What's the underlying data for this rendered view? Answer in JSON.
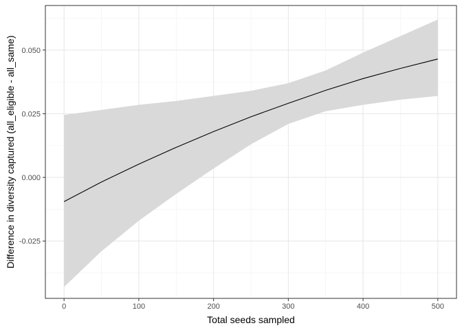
{
  "chart_data": {
    "type": "line",
    "title": "",
    "xlabel": "Total seeds sampled",
    "ylabel": "Difference in diversity captured (all_eligible - all_same)",
    "xlim": [
      -25,
      525
    ],
    "ylim": [
      -0.0475,
      0.0675
    ],
    "x_ticks": [
      0,
      100,
      200,
      300,
      400,
      500
    ],
    "x_tick_labels": [
      "0",
      "100",
      "200",
      "300",
      "400",
      "500"
    ],
    "y_ticks": [
      -0.025,
      0.0,
      0.025,
      0.05
    ],
    "y_tick_labels": [
      "-0.025",
      "0.000",
      "0.025",
      "0.050"
    ],
    "grid": true,
    "legend": "none",
    "series": [
      {
        "type": "line",
        "color": "#000000",
        "x": [
          0,
          50,
          100,
          150,
          200,
          250,
          300,
          350,
          400,
          450,
          500
        ],
        "y": [
          -0.0095,
          -0.0018,
          0.0052,
          0.0118,
          0.018,
          0.0238,
          0.0291,
          0.0342,
          0.0388,
          0.0428,
          0.0465
        ]
      },
      {
        "type": "ribbon",
        "color": "#d9d9d9",
        "x": [
          0,
          50,
          100,
          150,
          200,
          250,
          300,
          350,
          400,
          450,
          500
        ],
        "lower": [
          -0.043,
          -0.029,
          -0.017,
          -0.0065,
          0.0035,
          0.013,
          0.021,
          0.026,
          0.0285,
          0.0305,
          0.032
        ],
        "upper": [
          0.0245,
          0.0265,
          0.0285,
          0.03,
          0.032,
          0.034,
          0.037,
          0.042,
          0.049,
          0.0555,
          0.062
        ]
      }
    ]
  }
}
